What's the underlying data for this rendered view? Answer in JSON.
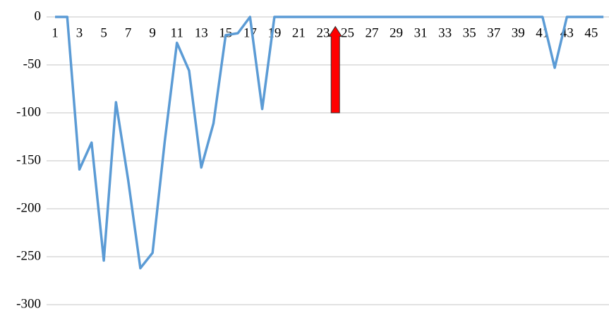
{
  "chart_data": {
    "type": "line",
    "categories": [
      "1",
      null,
      "3",
      null,
      "5",
      null,
      "7",
      null,
      "9",
      null,
      "11",
      null,
      "13",
      null,
      "15",
      null,
      "17",
      null,
      "19",
      null,
      "21",
      null,
      "23",
      null,
      "25",
      null,
      "27",
      null,
      "29",
      null,
      "31",
      null,
      "33",
      null,
      "35",
      null,
      "37",
      null,
      "39",
      null,
      "41",
      null,
      "43",
      null,
      "45",
      null
    ],
    "series": [
      {
        "color": "#5b9bd5",
        "values": [
          0,
          0,
          -159,
          -131,
          -254,
          -89,
          -170,
          -262,
          -246,
          -130,
          -27,
          -56,
          -157,
          -111,
          -19,
          -17,
          0,
          -96,
          0,
          0,
          0,
          0,
          0,
          0,
          0,
          0,
          0,
          0,
          0,
          0,
          0,
          0,
          0,
          0,
          0,
          0,
          0,
          0,
          0,
          0,
          0,
          -53,
          0,
          0,
          0,
          0
        ]
      }
    ],
    "ylim": [
      -300,
      0
    ],
    "yticks": [
      0,
      -50,
      -100,
      -150,
      -200,
      -250,
      -300
    ],
    "grid": true,
    "arrow": {
      "category": 24,
      "from": -100,
      "to": -10,
      "color": "#ff0000"
    }
  }
}
